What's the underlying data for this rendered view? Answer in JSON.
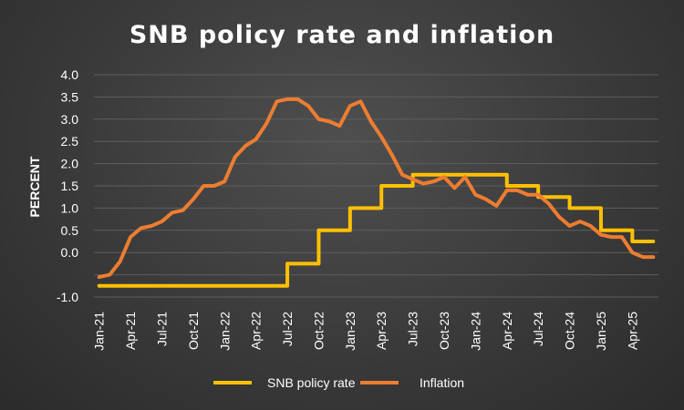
{
  "chart_data": {
    "type": "line",
    "title": "SNB policy rate and inflation",
    "xlabel": "",
    "ylabel": "PERCENT",
    "ylim": [
      -1.0,
      4.0
    ],
    "y_ticks": [
      "-1.0",
      "0.0",
      "0.5",
      "1.0",
      "1.5",
      "2.0",
      "2.5",
      "3.0",
      "3.5",
      "4.0"
    ],
    "y_tick_values": [
      -1.0,
      0.0,
      0.5,
      1.0,
      1.5,
      2.0,
      2.5,
      3.0,
      3.5,
      4.0
    ],
    "x_tick_labels": [
      "Jan-21",
      "Apr-21",
      "Jul-21",
      "Oct-21",
      "Jan-22",
      "Apr-22",
      "Jul-22",
      "Oct-22",
      "Jan-23",
      "Apr-23",
      "Jul-23",
      "Oct-23",
      "Jan-24",
      "Apr-24",
      "Jul-24",
      "Oct-24",
      "Jan-25",
      "Apr-25"
    ],
    "months": 54,
    "grid": true,
    "legend_position": "bottom",
    "series": [
      {
        "name": "SNB policy rate",
        "color": "#FFC000",
        "step": true,
        "values": [
          -0.75,
          -0.75,
          -0.75,
          -0.75,
          -0.75,
          -0.75,
          -0.75,
          -0.75,
          -0.75,
          -0.75,
          -0.75,
          -0.75,
          -0.75,
          -0.75,
          -0.75,
          -0.75,
          -0.75,
          -0.75,
          -0.25,
          -0.25,
          -0.25,
          0.5,
          0.5,
          0.5,
          1.0,
          1.0,
          1.0,
          1.5,
          1.5,
          1.5,
          1.75,
          1.75,
          1.75,
          1.75,
          1.75,
          1.75,
          1.75,
          1.75,
          1.75,
          1.5,
          1.5,
          1.5,
          1.25,
          1.25,
          1.25,
          1.0,
          1.0,
          1.0,
          0.5,
          0.5,
          0.5,
          0.25,
          0.25,
          0.25
        ]
      },
      {
        "name": "Inflation",
        "color": "#ED7D31",
        "step": false,
        "values": [
          -0.55,
          -0.5,
          -0.2,
          0.35,
          0.55,
          0.6,
          0.7,
          0.9,
          0.95,
          1.2,
          1.5,
          1.5,
          1.6,
          2.15,
          2.4,
          2.55,
          2.9,
          3.4,
          3.45,
          3.45,
          3.3,
          3.0,
          2.95,
          2.85,
          3.3,
          3.4,
          2.95,
          2.6,
          2.2,
          1.75,
          1.65,
          1.55,
          1.6,
          1.7,
          1.45,
          1.7,
          1.3,
          1.2,
          1.05,
          1.4,
          1.4,
          1.3,
          1.3,
          1.1,
          0.8,
          0.6,
          0.7,
          0.6,
          0.4,
          0.35,
          0.35,
          0.0,
          -0.1,
          -0.1
        ]
      }
    ]
  }
}
